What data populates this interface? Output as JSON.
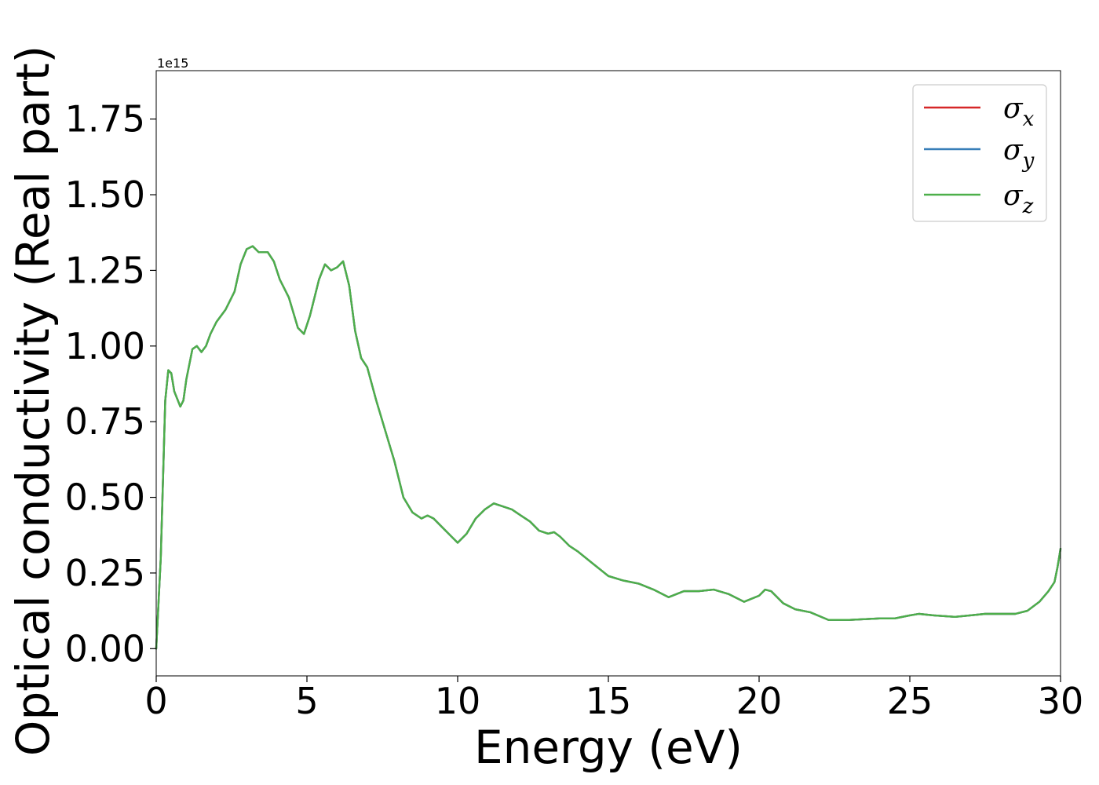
{
  "chart_data": {
    "type": "line",
    "title": "",
    "xlabel": "Energy (eV)",
    "ylabel": "Optical conductivity (Real part)",
    "y_offset_label": "1e15",
    "xlim": [
      0,
      30
    ],
    "ylim": [
      -0.09,
      1.91
    ],
    "xticks": [
      0,
      5,
      10,
      15,
      20,
      25,
      30
    ],
    "xtick_labels": [
      "0",
      "5",
      "10",
      "15",
      "20",
      "25",
      "30"
    ],
    "yticks": [
      0.0,
      0.25,
      0.5,
      0.75,
      1.0,
      1.25,
      1.5,
      1.75
    ],
    "ytick_labels": [
      "0.00",
      "0.25",
      "0.50",
      "0.75",
      "1.00",
      "1.25",
      "1.50",
      "1.75"
    ],
    "grid": false,
    "legend_position": "top-right",
    "x": [
      0,
      0.15,
      0.3,
      0.4,
      0.5,
      0.6,
      0.8,
      0.9,
      1.0,
      1.2,
      1.35,
      1.5,
      1.65,
      1.8,
      2.0,
      2.3,
      2.6,
      2.8,
      3.0,
      3.2,
      3.4,
      3.7,
      3.9,
      4.1,
      4.4,
      4.7,
      4.9,
      5.1,
      5.4,
      5.6,
      5.8,
      6.0,
      6.2,
      6.4,
      6.6,
      6.8,
      7.0,
      7.3,
      7.6,
      7.9,
      8.2,
      8.5,
      8.8,
      9.0,
      9.2,
      9.5,
      9.8,
      10.0,
      10.3,
      10.6,
      10.9,
      11.2,
      11.5,
      11.8,
      12.1,
      12.4,
      12.7,
      13.0,
      13.2,
      13.4,
      13.7,
      14.0,
      14.5,
      15.0,
      15.5,
      16.0,
      16.5,
      17.0,
      17.5,
      18.0,
      18.5,
      19.0,
      19.5,
      20.0,
      20.2,
      20.4,
      20.8,
      21.2,
      21.7,
      22.3,
      23.0,
      24.0,
      24.5,
      25.0,
      25.3,
      25.8,
      26.5,
      27.0,
      27.5,
      28.0,
      28.5,
      28.9,
      29.3,
      29.6,
      29.8,
      29.9,
      30.0
    ],
    "series": [
      {
        "name": "σx",
        "color": "#d62728",
        "values": [
          0.0,
          0.3,
          0.82,
          0.92,
          0.91,
          0.85,
          0.8,
          0.82,
          0.89,
          0.99,
          1.0,
          0.98,
          1.0,
          1.04,
          1.08,
          1.12,
          1.18,
          1.27,
          1.32,
          1.33,
          1.31,
          1.31,
          1.28,
          1.22,
          1.16,
          1.06,
          1.04,
          1.1,
          1.22,
          1.27,
          1.25,
          1.26,
          1.28,
          1.2,
          1.05,
          0.96,
          0.93,
          0.82,
          0.72,
          0.62,
          0.5,
          0.45,
          0.43,
          0.44,
          0.43,
          0.4,
          0.37,
          0.35,
          0.38,
          0.43,
          0.46,
          0.48,
          0.47,
          0.46,
          0.44,
          0.42,
          0.39,
          0.38,
          0.385,
          0.37,
          0.34,
          0.32,
          0.28,
          0.24,
          0.225,
          0.215,
          0.195,
          0.17,
          0.19,
          0.19,
          0.195,
          0.18,
          0.155,
          0.175,
          0.195,
          0.19,
          0.15,
          0.13,
          0.12,
          0.095,
          0.095,
          0.1,
          0.1,
          0.11,
          0.115,
          0.11,
          0.105,
          0.11,
          0.115,
          0.115,
          0.115,
          0.125,
          0.155,
          0.19,
          0.22,
          0.27,
          0.33
        ]
      },
      {
        "name": "σy",
        "color": "#377eb8",
        "values": [
          0.0,
          0.3,
          0.82,
          0.92,
          0.91,
          0.85,
          0.8,
          0.82,
          0.89,
          0.99,
          1.0,
          0.98,
          1.0,
          1.04,
          1.08,
          1.12,
          1.18,
          1.27,
          1.32,
          1.33,
          1.31,
          1.31,
          1.28,
          1.22,
          1.16,
          1.06,
          1.04,
          1.1,
          1.22,
          1.27,
          1.25,
          1.26,
          1.28,
          1.2,
          1.05,
          0.96,
          0.93,
          0.82,
          0.72,
          0.62,
          0.5,
          0.45,
          0.43,
          0.44,
          0.43,
          0.4,
          0.37,
          0.35,
          0.38,
          0.43,
          0.46,
          0.48,
          0.47,
          0.46,
          0.44,
          0.42,
          0.39,
          0.38,
          0.385,
          0.37,
          0.34,
          0.32,
          0.28,
          0.24,
          0.225,
          0.215,
          0.195,
          0.17,
          0.19,
          0.19,
          0.195,
          0.18,
          0.155,
          0.175,
          0.195,
          0.19,
          0.15,
          0.13,
          0.12,
          0.095,
          0.095,
          0.1,
          0.1,
          0.11,
          0.115,
          0.11,
          0.105,
          0.11,
          0.115,
          0.115,
          0.115,
          0.125,
          0.155,
          0.19,
          0.22,
          0.27,
          0.33
        ]
      },
      {
        "name": "σz",
        "color": "#4daf4a",
        "values": [
          0.0,
          0.3,
          0.82,
          0.92,
          0.91,
          0.85,
          0.8,
          0.82,
          0.89,
          0.99,
          1.0,
          0.98,
          1.0,
          1.04,
          1.08,
          1.12,
          1.18,
          1.27,
          1.32,
          1.33,
          1.31,
          1.31,
          1.28,
          1.22,
          1.16,
          1.06,
          1.04,
          1.1,
          1.22,
          1.27,
          1.25,
          1.26,
          1.28,
          1.2,
          1.05,
          0.96,
          0.93,
          0.82,
          0.72,
          0.62,
          0.5,
          0.45,
          0.43,
          0.44,
          0.43,
          0.4,
          0.37,
          0.35,
          0.38,
          0.43,
          0.46,
          0.48,
          0.47,
          0.46,
          0.44,
          0.42,
          0.39,
          0.38,
          0.385,
          0.37,
          0.34,
          0.32,
          0.28,
          0.24,
          0.225,
          0.215,
          0.195,
          0.17,
          0.19,
          0.19,
          0.195,
          0.18,
          0.155,
          0.175,
          0.195,
          0.19,
          0.15,
          0.13,
          0.12,
          0.095,
          0.095,
          0.1,
          0.1,
          0.11,
          0.115,
          0.11,
          0.105,
          0.11,
          0.115,
          0.115,
          0.115,
          0.125,
          0.155,
          0.19,
          0.22,
          0.27,
          0.33
        ]
      }
    ],
    "legend": [
      {
        "base": "σ",
        "sub": "x",
        "color": "#d62728"
      },
      {
        "base": "σ",
        "sub": "y",
        "color": "#377eb8"
      },
      {
        "base": "σ",
        "sub": "z",
        "color": "#4daf4a"
      }
    ]
  }
}
